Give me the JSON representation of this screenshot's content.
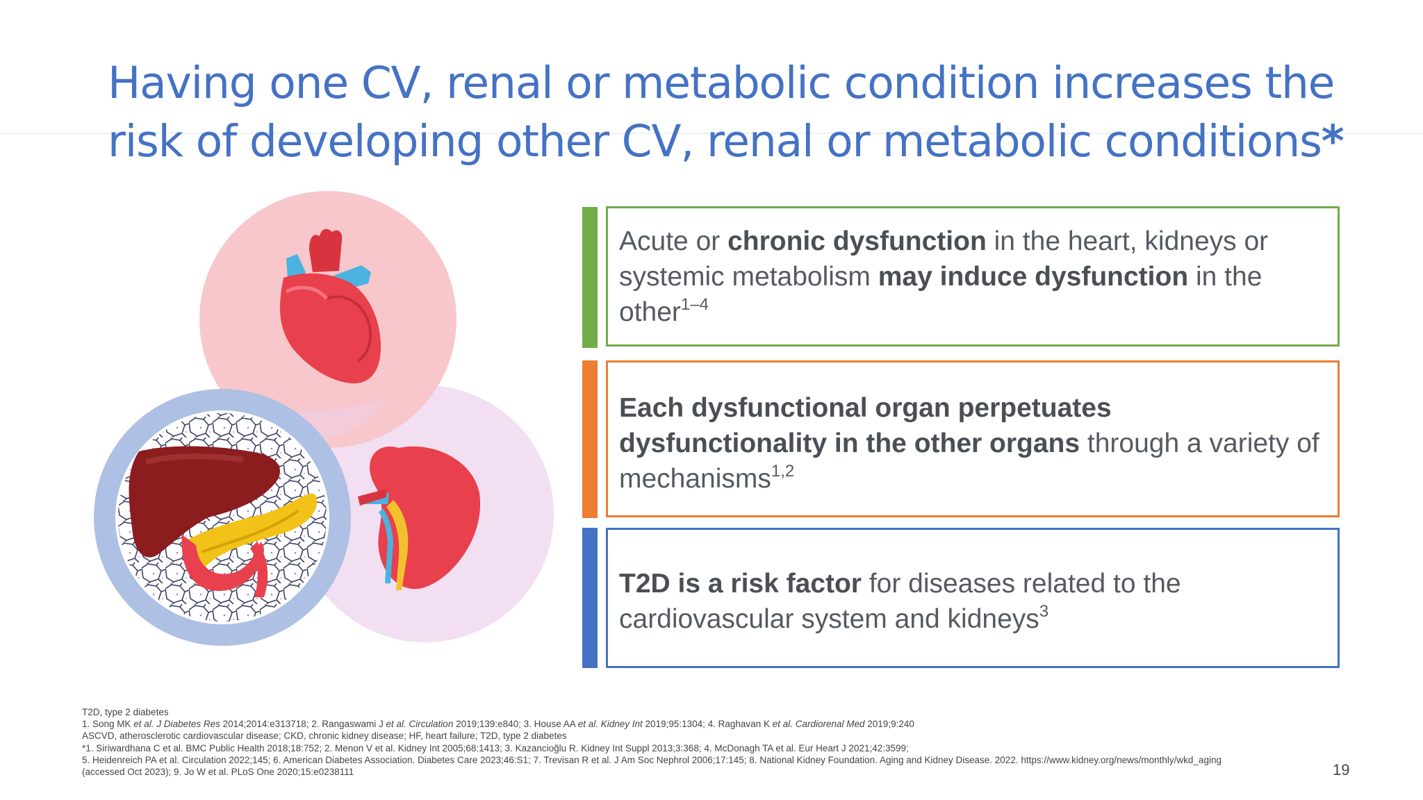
{
  "slide": {
    "title_line1": "Having one CV, renal or metabolic condition increases the",
    "title_line2": "risk of developing other CV, renal or metabolic conditions",
    "title_star": "*",
    "page_number": "19"
  },
  "colors": {
    "title": "#4472c4",
    "box1": "#70ad47",
    "box2": "#ed7d31",
    "box3": "#4472c4"
  },
  "illustration": {
    "icons": [
      "heart-icon",
      "liver-icon",
      "pancreas-icon",
      "kidney-icon",
      "adipose-tissue-pattern"
    ]
  },
  "boxes": [
    {
      "p1": "Acute or ",
      "b1": "chronic dysfunction",
      "p2": " in the heart, kidneys or systemic metabolism ",
      "b2": "may induce dysfunction",
      "p3": " in the other",
      "sup": "1–4"
    },
    {
      "b1": "Each dysfunctional organ perpetuates dysfunctionality in the other organs",
      "p1": " through a variety of mechanisms",
      "sup": "1,2"
    },
    {
      "b1": "T2D is a risk factor",
      "p1": " for diseases related to the cardiovascular system and kidneys",
      "sup": "3"
    }
  ],
  "references": {
    "abbrev1": "T2D, type 2 diabetes",
    "ref1_a": "1. Song MK ",
    "ref1_b": "et al. J Diabetes Res",
    "ref1_c": " 2014;2014:e313718; 2. Rangaswami J ",
    "ref1_d": "et al. Circulation",
    "ref1_e": " 2019;139:e840; 3. House AA ",
    "ref1_f": "et al. Kidney Int",
    "ref1_g": " 2019;95:1304; 4. Raghavan K ",
    "ref1_h": "et al. Cardiorenal Med",
    "ref1_i": " 2019;9:240",
    "abbrev2": "ASCVD, atherosclerotic cardiovascular disease; CKD, chronic kidney disease; HF, heart failure; T2D, type 2 diabetes",
    "ref2": "*1. Siriwardhana C et al. BMC Public Health 2018;18:752; 2. Menon V et al. Kidney Int 2005;68:1413; 3. Kazancioğlu R. Kidney Int Suppl 2013;3:368; 4. McDonagh TA et al. Eur Heart J 2021;42:3599;",
    "ref3": "5. Heidenreich PA et al. Circulation 2022;145; 6. American Diabetes Association. Diabetes Care 2023;46:S1; 7. Trevisan R et al. J Am Soc Nephrol 2006;17:145; 8. National Kidney Foundation. Aging and Kidney Disease. 2022. https://www.kidney.org/news/monthly/wkd_aging",
    "ref4": "(accessed Oct 2023); 9. Jo W et al. PLoS One 2020;15:e0238111"
  }
}
